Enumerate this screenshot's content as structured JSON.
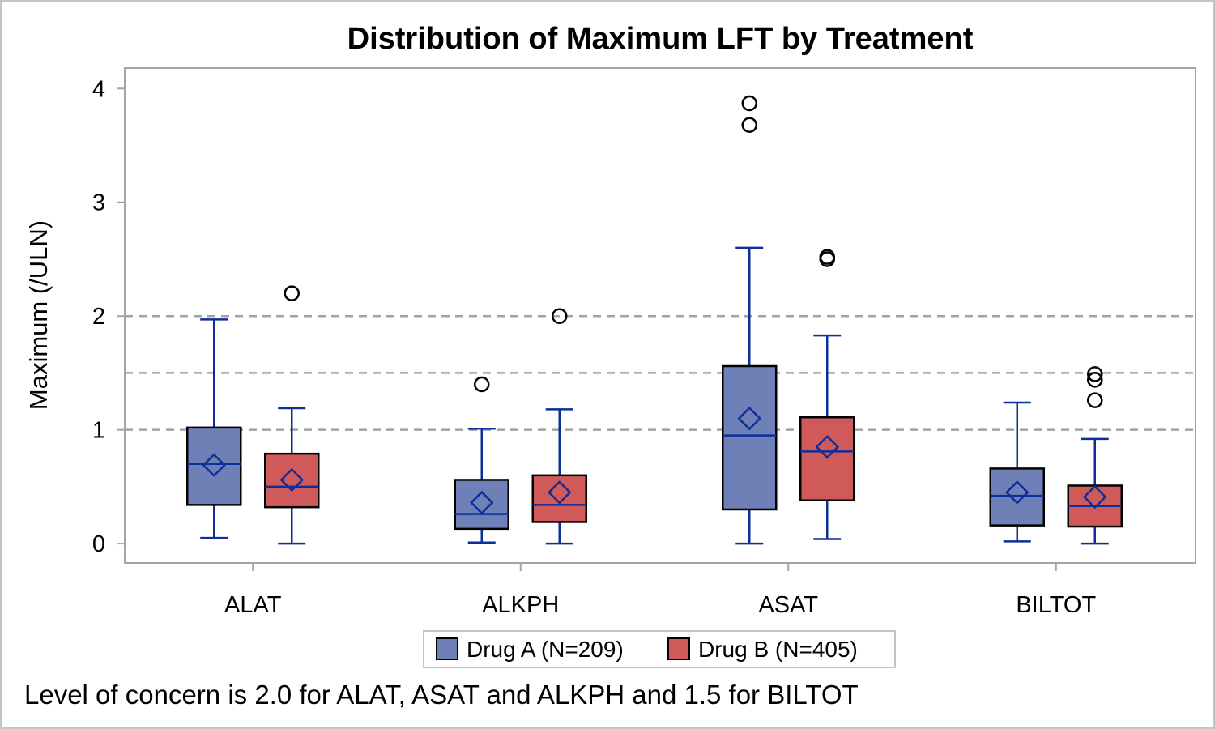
{
  "chart_data": {
    "type": "box",
    "title": "Distribution of Maximum LFT by Treatment",
    "xlabel": "",
    "ylabel": "Maximum (/ULN)",
    "ylim": [
      -0.17,
      4.18
    ],
    "yticks": [
      0,
      1,
      2,
      3,
      4
    ],
    "categories": [
      "ALAT",
      "ALKPH",
      "ASAT",
      "BILTOT"
    ],
    "reference_lines": [
      1,
      1.5,
      2
    ],
    "grid": false,
    "legend_position": "bottom-center",
    "series": [
      {
        "name": "Drug A (N=209)",
        "color": "#6e80b5",
        "boxes": [
          {
            "whisker_low": 0.05,
            "q1": 0.34,
            "median": 0.7,
            "q3": 1.02,
            "whisker_high": 1.97,
            "mean": 0.69,
            "outliers": []
          },
          {
            "whisker_low": 0.01,
            "q1": 0.13,
            "median": 0.26,
            "q3": 0.56,
            "whisker_high": 1.01,
            "mean": 0.36,
            "outliers": [
              1.4
            ]
          },
          {
            "whisker_low": 0.0,
            "q1": 0.3,
            "median": 0.95,
            "q3": 1.56,
            "whisker_high": 2.6,
            "mean": 1.1,
            "outliers": [
              3.68,
              3.87
            ]
          },
          {
            "whisker_low": 0.02,
            "q1": 0.16,
            "median": 0.42,
            "q3": 0.66,
            "whisker_high": 1.24,
            "mean": 0.45,
            "outliers": []
          }
        ]
      },
      {
        "name": "Drug B (N=405)",
        "color": "#d05a5a",
        "boxes": [
          {
            "whisker_low": 0.0,
            "q1": 0.32,
            "median": 0.5,
            "q3": 0.79,
            "whisker_high": 1.19,
            "mean": 0.56,
            "outliers": [
              2.2
            ]
          },
          {
            "whisker_low": 0.0,
            "q1": 0.19,
            "median": 0.34,
            "q3": 0.6,
            "whisker_high": 1.18,
            "mean": 0.45,
            "outliers": [
              2.0
            ]
          },
          {
            "whisker_low": 0.04,
            "q1": 0.38,
            "median": 0.81,
            "q3": 1.11,
            "whisker_high": 1.83,
            "mean": 0.85,
            "outliers": [
              2.5,
              2.52
            ]
          },
          {
            "whisker_low": 0.0,
            "q1": 0.15,
            "median": 0.33,
            "q3": 0.51,
            "whisker_high": 0.92,
            "mean": 0.41,
            "outliers": [
              1.26,
              1.44,
              1.49
            ]
          }
        ]
      }
    ],
    "footnote": "Level of concern is 2.0 for ALAT, ASAT and ALKPH and 1.5 for BILTOT"
  }
}
